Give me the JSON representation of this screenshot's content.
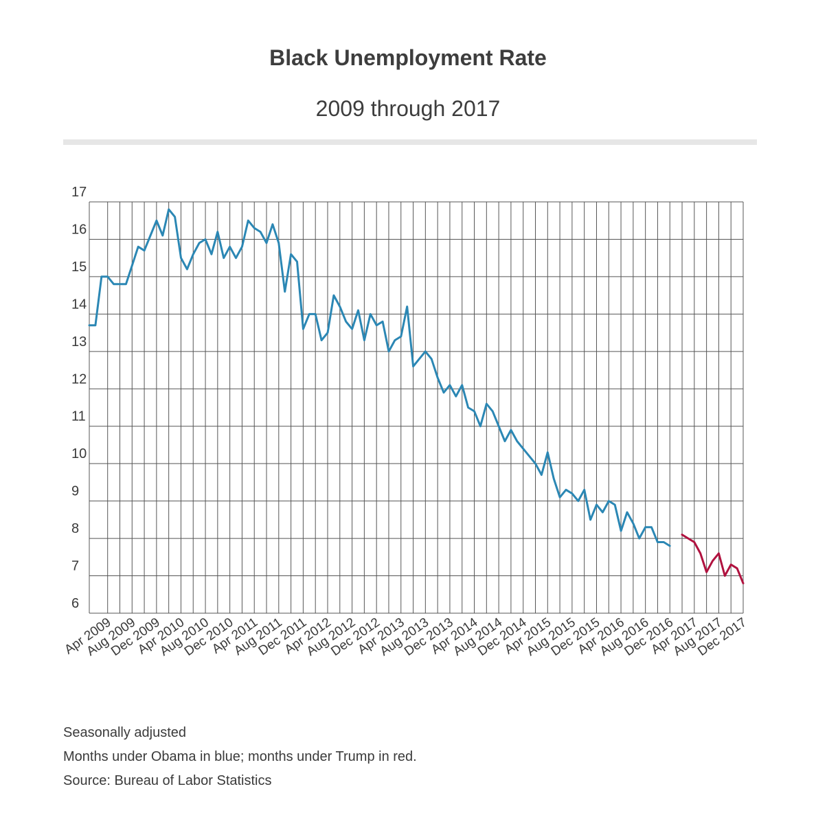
{
  "header": {
    "title": "Black Unemployment Rate",
    "subtitle": "2009 through 2017"
  },
  "notes": {
    "line1": "Seasonally adjusted",
    "line2": "Months under Obama in blue; months under Trump in red.",
    "line3": "Source: Bureau of Labor Statistics"
  },
  "colors": {
    "obama": "#2b87b4",
    "trump": "#b0123f",
    "grid": "#555555"
  },
  "chart_data": {
    "type": "line",
    "title": "Black Unemployment Rate",
    "subtitle": "2009 through 2017",
    "xlabel": "",
    "ylabel": "",
    "ylim": [
      6,
      17
    ],
    "yticks": [
      6,
      7,
      8,
      9,
      10,
      11,
      12,
      13,
      14,
      15,
      16,
      17
    ],
    "xlim": [
      "Jan 2009",
      "Dec 2017"
    ],
    "xtick_labels": [
      "Apr 2009",
      "Aug 2009",
      "Dec 2009",
      "Apr 2010",
      "Aug 2010",
      "Dec 2010",
      "Apr 2011",
      "Aug 2011",
      "Dec 2011",
      "Apr 2012",
      "Aug 2012",
      "Dec 2012",
      "Apr 2013",
      "Aug 2013",
      "Dec 2013",
      "Apr 2014",
      "Aug 2014",
      "Dec 2014",
      "Apr 2015",
      "Aug 2015",
      "Dec 2015",
      "Apr 2016",
      "Aug 2016",
      "Dec 2016",
      "Apr 2017",
      "Aug 2017",
      "Dec 2017"
    ],
    "grid": true,
    "legend": "none",
    "series": [
      {
        "start": "Jan 2009",
        "color": "#2b87b4",
        "values": [
          13.7,
          13.7,
          15.0,
          15.0,
          14.8,
          14.8,
          14.8,
          15.3,
          15.8,
          15.7,
          16.1,
          16.5,
          16.1,
          16.8,
          16.6,
          15.5,
          15.2,
          15.6,
          15.9,
          16.0,
          15.6,
          16.2,
          15.5,
          15.8,
          15.5,
          15.8,
          16.5,
          16.3,
          16.2,
          15.9,
          16.4,
          15.9,
          14.6,
          15.6,
          15.4,
          13.6,
          14.0,
          14.0,
          13.3,
          13.5,
          14.5,
          14.2,
          13.8,
          13.6,
          14.1,
          13.3,
          14.0,
          13.7,
          13.8,
          13.0,
          13.3,
          13.4,
          14.2,
          12.6,
          12.8,
          13.0,
          12.8,
          12.3,
          11.9,
          12.1,
          11.8,
          12.1,
          11.5,
          11.4,
          11.0,
          11.6,
          11.4,
          11.0,
          10.6,
          10.9,
          10.6,
          10.4,
          10.2,
          10.0,
          9.7,
          10.3,
          9.6,
          9.1,
          9.3,
          9.2,
          9.0,
          9.3,
          8.5,
          8.9,
          8.7,
          9.0,
          8.9,
          8.2,
          8.7,
          8.4,
          8.0,
          8.3,
          8.3,
          7.9,
          7.9,
          7.8
        ]
      },
      {
        "start": "Feb 2017",
        "color": "#b0123f",
        "values": [
          8.1,
          8.0,
          7.9,
          7.6,
          7.1,
          7.4,
          7.6,
          7.0,
          7.3,
          7.2,
          6.8
        ]
      }
    ]
  }
}
